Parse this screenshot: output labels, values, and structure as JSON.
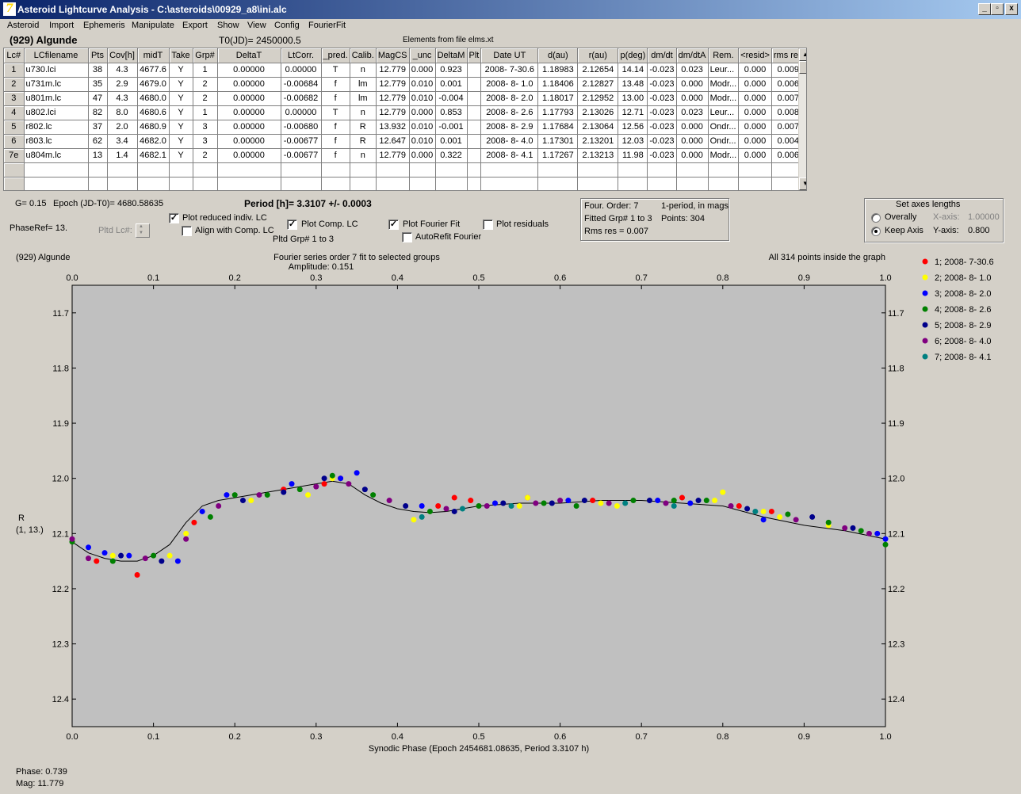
{
  "window": {
    "title": "Asteroid Lightcurve Analysis - C:\\asteroids\\00929_a8\\ini.alc",
    "buttons": {
      "min": "_",
      "max": "▫",
      "close": "x"
    }
  },
  "menu": [
    "Asteroid",
    "Import",
    "Ephemeris",
    "Manipulate",
    "Export",
    "Show",
    "View",
    "Config",
    "FourierFit"
  ],
  "header": {
    "asteroid": "(929) Algunde",
    "t0": "T0(JD)= 2450000.5",
    "elements": "Elements from file elms.xt"
  },
  "table": {
    "columns": [
      "Lc#",
      "LCfilename",
      "Pts",
      "Cov[h]",
      "midT",
      "Take",
      "Grp#",
      "DeltaT",
      "LtCorr.",
      "_pred.",
      "Calib.",
      "MagCS",
      "_unc",
      "DeltaM",
      "Plt",
      "Date UT",
      "d(au)",
      "r(au)",
      "p(deg)",
      "dm/dt",
      "dm/dtA",
      "Rem.",
      "<resid>",
      "rms res"
    ],
    "rows": [
      [
        "1",
        "u730.lci",
        "38",
        "4.3",
        "4677.6",
        "Y",
        "1",
        "0.00000",
        "0.00000",
        "T",
        "n",
        "12.779",
        "0.000",
        "0.923",
        "",
        "2008- 7-30.6",
        "1.18983",
        "2.12654",
        "14.14",
        "-0.023",
        "0.023",
        "Leur...",
        "0.000",
        "0.009"
      ],
      [
        "2",
        "u731m.lc",
        "35",
        "2.9",
        "4679.0",
        "Y",
        "2",
        "0.00000",
        "-0.00684",
        "f",
        "lm",
        "12.779",
        "0.010",
        "0.001",
        "",
        "2008- 8- 1.0",
        "1.18406",
        "2.12827",
        "13.48",
        "-0.023",
        "0.000",
        "Modr...",
        "0.000",
        "0.006"
      ],
      [
        "3",
        "u801m.lc",
        "47",
        "4.3",
        "4680.0",
        "Y",
        "2",
        "0.00000",
        "-0.00682",
        "f",
        "lm",
        "12.779",
        "0.010",
        "-0.004",
        "",
        "2008- 8- 2.0",
        "1.18017",
        "2.12952",
        "13.00",
        "-0.023",
        "0.000",
        "Modr...",
        "0.000",
        "0.007"
      ],
      [
        "4",
        "u802.lci",
        "82",
        "8.0",
        "4680.6",
        "Y",
        "1",
        "0.00000",
        "0.00000",
        "T",
        "n",
        "12.779",
        "0.000",
        "0.853",
        "",
        "2008- 8- 2.6",
        "1.17793",
        "2.13026",
        "12.71",
        "-0.023",
        "0.023",
        "Leur...",
        "0.000",
        "0.008"
      ],
      [
        "5",
        "r802.lc",
        "37",
        "2.0",
        "4680.9",
        "Y",
        "3",
        "0.00000",
        "-0.00680",
        "f",
        "R",
        "13.932",
        "0.010",
        "-0.001",
        "",
        "2008- 8- 2.9",
        "1.17684",
        "2.13064",
        "12.56",
        "-0.023",
        "0.000",
        "Ondr...",
        "0.000",
        "0.007"
      ],
      [
        "6",
        "r803.lc",
        "62",
        "3.4",
        "4682.0",
        "Y",
        "3",
        "0.00000",
        "-0.00677",
        "f",
        "R",
        "12.647",
        "0.010",
        "0.001",
        "",
        "2008- 8- 4.0",
        "1.17301",
        "2.13201",
        "12.03",
        "-0.023",
        "0.000",
        "Ondr...",
        "0.000",
        "0.004"
      ],
      [
        "7e",
        "u804m.lc",
        "13",
        "1.4",
        "4682.1",
        "Y",
        "2",
        "0.00000",
        "-0.00677",
        "f",
        "n",
        "12.779",
        "0.000",
        "0.322",
        "",
        "2008- 8- 4.1",
        "1.17267",
        "2.13213",
        "11.98",
        "-0.023",
        "0.000",
        "Modr...",
        "0.000",
        "0.006"
      ]
    ]
  },
  "controls": {
    "g": "G= 0.15",
    "epoch": "Epoch (JD-T0)= 4680.58635",
    "period": "Period [h]= 3.3107 +/- 0.0003",
    "phaseref": "PhaseRef= 13.",
    "pltd_lc": "Pltd Lc#:",
    "plot_reduced": "Plot reduced indiv. LC",
    "align_comp": "Align with Comp. LC",
    "plot_comp": "Plot Comp. LC",
    "pltd_grp": "Pltd Grp#  1   to   3",
    "plot_fourier": "Plot Fourier Fit",
    "autorefit": "AutoRefit Fourier",
    "plot_resid": "Plot residuals",
    "four_order": "Four. Order:  7",
    "one_period": "1-period, in mags",
    "fitted_grp": "Fitted Grp# 1 to 3",
    "points": "Points: 304",
    "rms": "Rms res     = 0.007",
    "axes_title": "Set axes lengths",
    "overally": "Overally",
    "keep_axis": "Keep Axis",
    "xaxis_lbl": "X-axis:",
    "xaxis_val": "1.00000",
    "yaxis_lbl": "Y-axis:",
    "yaxis_val": "0.800"
  },
  "status": {
    "phase": "Phase:  0.739",
    "mag": "Mag:   11.779"
  },
  "chart_data": {
    "type": "scatter",
    "title_left": "(929) Algunde",
    "title_center": "Fourier series order 7 fit to selected groups",
    "subtitle": "Amplitude: 0.151",
    "title_right": "All 314 points inside the graph",
    "xlabel": "Synodic Phase (Epoch 2454681.08635, Period 3.3107 h)",
    "ylabel": "R",
    "ylabel2": "(1, 13.)",
    "xlim": [
      0,
      1
    ],
    "ylim": [
      11.65,
      12.45
    ],
    "y_reversed": true,
    "x_ticks": [
      "0.0",
      "0.1",
      "0.2",
      "0.3",
      "0.4",
      "0.5",
      "0.6",
      "0.7",
      "0.8",
      "0.9",
      "1.0"
    ],
    "y_ticks": [
      "11.7",
      "11.8",
      "11.9",
      "12.0",
      "12.1",
      "12.2",
      "12.3",
      "12.4"
    ],
    "fit_curve": {
      "x": [
        0.0,
        0.02,
        0.04,
        0.06,
        0.08,
        0.1,
        0.12,
        0.14,
        0.16,
        0.18,
        0.2,
        0.22,
        0.24,
        0.26,
        0.28,
        0.3,
        0.32,
        0.34,
        0.36,
        0.38,
        0.4,
        0.42,
        0.44,
        0.46,
        0.48,
        0.5,
        0.55,
        0.6,
        0.65,
        0.7,
        0.75,
        0.8,
        0.85,
        0.9,
        0.95,
        1.0
      ],
      "y": [
        12.115,
        12.135,
        12.145,
        12.15,
        12.15,
        12.14,
        12.12,
        12.08,
        12.05,
        12.04,
        12.035,
        12.03,
        12.025,
        12.02,
        12.015,
        12.01,
        12.005,
        12.01,
        12.03,
        12.045,
        12.055,
        12.06,
        12.062,
        12.06,
        12.055,
        12.05,
        12.045,
        12.045,
        12.04,
        12.04,
        12.045,
        12.05,
        12.07,
        12.085,
        12.095,
        12.11
      ]
    },
    "series": [
      {
        "name": "1; 2008- 7-30.6",
        "color": "#ff0000",
        "x": [
          0.03,
          0.08,
          0.15,
          0.26,
          0.31,
          0.33,
          0.45,
          0.47,
          0.49,
          0.56,
          0.64,
          0.75,
          0.82,
          0.86
        ],
        "y": [
          12.15,
          12.175,
          12.08,
          12.02,
          12.01,
          12.0,
          12.05,
          12.035,
          12.04,
          12.035,
          12.04,
          12.035,
          12.05,
          12.06
        ]
      },
      {
        "name": "2; 2008- 8- 1.0",
        "color": "#ffff00",
        "x": [
          0.05,
          0.12,
          0.14,
          0.22,
          0.29,
          0.32,
          0.42,
          0.55,
          0.56,
          0.65,
          0.67,
          0.79,
          0.8,
          0.85,
          0.87,
          0.93
        ],
        "y": [
          12.14,
          12.14,
          12.1,
          12.04,
          12.03,
          12.0,
          12.075,
          12.05,
          12.035,
          12.045,
          12.05,
          12.04,
          12.025,
          12.06,
          12.07,
          12.085
        ]
      },
      {
        "name": "3; 2008- 8- 2.0",
        "color": "#0000ff",
        "x": [
          0.02,
          0.04,
          0.07,
          0.13,
          0.16,
          0.19,
          0.27,
          0.33,
          0.35,
          0.43,
          0.52,
          0.61,
          0.72,
          0.76,
          0.85,
          0.99,
          1.0
        ],
        "y": [
          12.125,
          12.135,
          12.14,
          12.15,
          12.06,
          12.03,
          12.01,
          12.0,
          11.99,
          12.05,
          12.045,
          12.04,
          12.04,
          12.045,
          12.075,
          12.1,
          12.11
        ]
      },
      {
        "name": "4; 2008- 8- 2.6",
        "color": "#008000",
        "x": [
          0.0,
          0.05,
          0.1,
          0.17,
          0.2,
          0.24,
          0.28,
          0.32,
          0.37,
          0.44,
          0.5,
          0.58,
          0.62,
          0.69,
          0.74,
          0.78,
          0.88,
          0.93,
          0.97,
          1.0
        ],
        "y": [
          12.115,
          12.15,
          12.14,
          12.07,
          12.03,
          12.03,
          12.02,
          11.995,
          12.03,
          12.06,
          12.05,
          12.045,
          12.05,
          12.04,
          12.04,
          12.04,
          12.065,
          12.08,
          12.095,
          12.12
        ]
      },
      {
        "name": "5; 2008- 8- 2.9",
        "color": "#00008b",
        "x": [
          0.06,
          0.11,
          0.21,
          0.26,
          0.31,
          0.36,
          0.41,
          0.47,
          0.53,
          0.59,
          0.63,
          0.71,
          0.77,
          0.83,
          0.91,
          0.96
        ],
        "y": [
          12.14,
          12.15,
          12.04,
          12.025,
          12.0,
          12.02,
          12.05,
          12.06,
          12.045,
          12.045,
          12.04,
          12.04,
          12.04,
          12.055,
          12.07,
          12.09
        ]
      },
      {
        "name": "6; 2008- 8- 4.0",
        "color": "#800080",
        "x": [
          0.0,
          0.02,
          0.09,
          0.14,
          0.18,
          0.23,
          0.3,
          0.34,
          0.39,
          0.46,
          0.51,
          0.57,
          0.6,
          0.66,
          0.73,
          0.81,
          0.89,
          0.95,
          0.98
        ],
        "y": [
          12.11,
          12.145,
          12.145,
          12.11,
          12.05,
          12.03,
          12.015,
          12.01,
          12.04,
          12.055,
          12.05,
          12.045,
          12.04,
          12.045,
          12.045,
          12.05,
          12.075,
          12.09,
          12.1
        ]
      },
      {
        "name": "7; 2008- 8- 4.1",
        "color": "#008080",
        "x": [
          0.43,
          0.48,
          0.54,
          0.68,
          0.74,
          0.84
        ],
        "y": [
          12.07,
          12.055,
          12.05,
          12.045,
          12.05,
          12.06
        ]
      }
    ]
  }
}
